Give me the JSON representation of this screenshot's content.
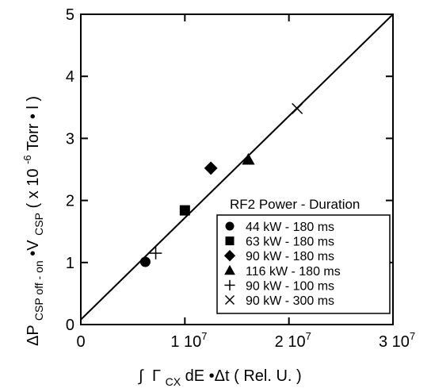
{
  "chart_data": {
    "type": "scatter",
    "xlabel": {
      "integral": "∫",
      "gamma": "Γ",
      "gamma_sub": "CX",
      "rest": " dE •Δt   ( Rel. U. )"
    },
    "ylabel": {
      "delta": "ΔP",
      "p_sub": "CSP off - on",
      "mid": " •V",
      "v_sub": "CSP",
      "unit_a": "  ( x 10",
      "unit_sup": "-6",
      "unit_b": " Torr • l )"
    },
    "xlim": [
      0,
      30000000
    ],
    "ylim": [
      0,
      5
    ],
    "x_ticks": [
      {
        "value": 0,
        "label": "0"
      },
      {
        "value": 10000000,
        "label": "1 10",
        "sup": "7"
      },
      {
        "value": 20000000,
        "label": "2 10",
        "sup": "7"
      },
      {
        "value": 30000000,
        "label": "3 10",
        "sup": "7"
      }
    ],
    "y_ticks": [
      {
        "value": 0,
        "label": "0"
      },
      {
        "value": 1,
        "label": "1"
      },
      {
        "value": 2,
        "label": "2"
      },
      {
        "value": 3,
        "label": "3"
      },
      {
        "value": 4,
        "label": "4"
      },
      {
        "value": 5,
        "label": "5"
      }
    ],
    "legend": {
      "title": "RF2 Power - Duration",
      "placement": "bottom-right"
    },
    "series": [
      {
        "name": "44 kW - 180 ms",
        "marker": "circle",
        "points": [
          {
            "x": 6200000,
            "y": 1.01
          }
        ]
      },
      {
        "name": "63 kW - 180 ms",
        "marker": "square",
        "points": [
          {
            "x": 10000000,
            "y": 1.84
          }
        ]
      },
      {
        "name": "90 kW - 180 ms",
        "marker": "diamond",
        "points": [
          {
            "x": 12500000,
            "y": 2.52
          }
        ]
      },
      {
        "name": "116 kW - 180 ms",
        "marker": "triangle",
        "points": [
          {
            "x": 16100000,
            "y": 2.66
          }
        ]
      },
      {
        "name": "90 kW - 100 ms",
        "marker": "plus",
        "points": [
          {
            "x": 7200000,
            "y": 1.15
          }
        ]
      },
      {
        "name": "90 kW - 300 ms",
        "marker": "cross",
        "points": [
          {
            "x": 20800000,
            "y": 3.48
          }
        ]
      }
    ],
    "fit_line": {
      "from": {
        "x": 0,
        "y": 0.08
      },
      "to": {
        "x": 30000000,
        "y": 5.0
      }
    },
    "grid": false
  }
}
